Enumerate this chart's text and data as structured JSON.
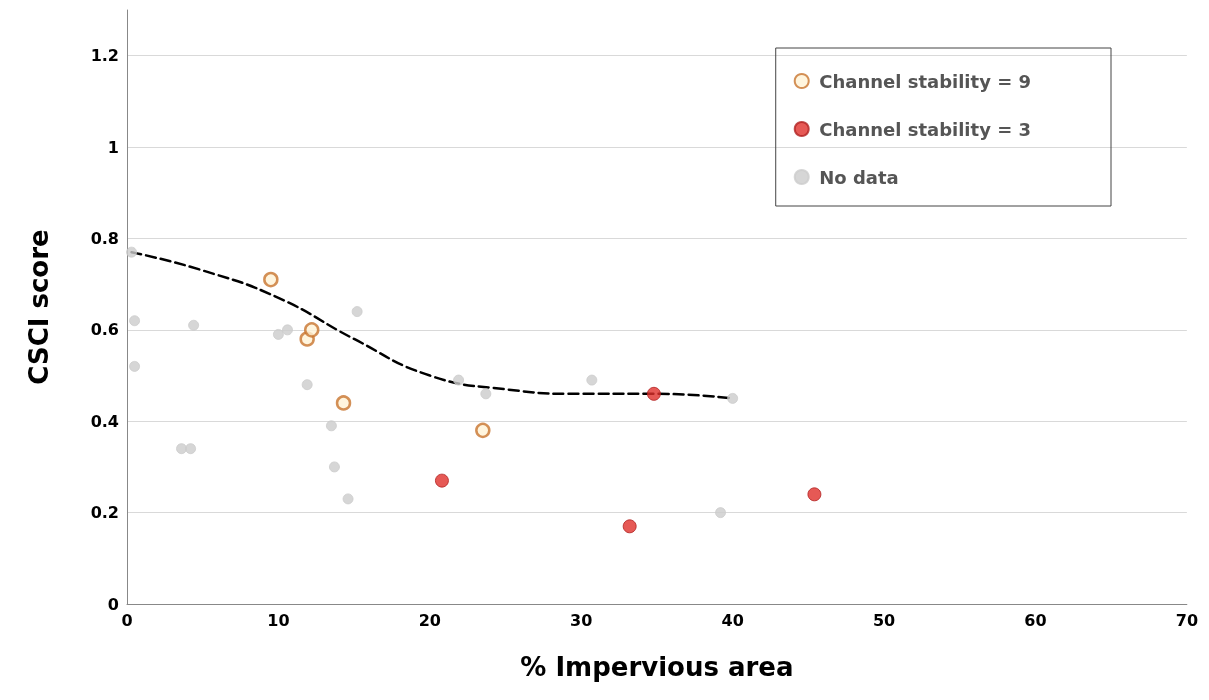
{
  "chart_data": {
    "type": "scatter",
    "xlabel": "% Impervious area",
    "ylabel": "CSCI score",
    "xlim": [
      0,
      70
    ],
    "xticks": [
      0,
      10,
      20,
      30,
      40,
      50,
      60,
      70
    ],
    "ylim": [
      0,
      1.3
    ],
    "yticks": [
      0,
      0.2,
      0.4,
      0.6,
      0.8,
      1,
      1.2
    ],
    "grid": "y",
    "legend": "top right",
    "marker": "circle",
    "series": [
      {
        "name": "Channel stability = 9",
        "color": "#c8742e",
        "x": [
          9.5,
          11.9,
          12.2,
          14.3,
          23.5
        ],
        "values": [
          0.71,
          0.58,
          0.6,
          0.44,
          0.38
        ]
      },
      {
        "name": "Channel stability = 3",
        "color": "#e0302a",
        "x": [
          20.8,
          33.2,
          34.8,
          45.4
        ],
        "values": [
          0.27,
          0.17,
          0.46,
          0.24
        ]
      },
      {
        "name": "No data",
        "color": "#cccccc",
        "x": [
          0.3,
          0.5,
          0.5,
          3.6,
          4.2,
          4.4,
          10.0,
          10.6,
          11.9,
          13.5,
          13.7,
          14.6,
          15.2,
          21.9,
          23.7,
          30.7,
          39.2,
          40.0
        ],
        "values": [
          0.77,
          0.62,
          0.52,
          0.34,
          0.34,
          0.61,
          0.59,
          0.6,
          0.48,
          0.39,
          0.3,
          0.23,
          0.64,
          0.49,
          0.46,
          0.49,
          0.2,
          0.45
        ]
      },
      {
        "type": "line",
        "color": "#000000",
        "marker": "none",
        "line_style": "dashed",
        "x": [
          0.3,
          5,
          10,
          15,
          20,
          25,
          30,
          35,
          40
        ],
        "values": [
          0.77,
          0.73,
          0.67,
          0.58,
          0.5,
          0.47,
          0.46,
          0.46,
          0.45
        ]
      }
    ]
  }
}
